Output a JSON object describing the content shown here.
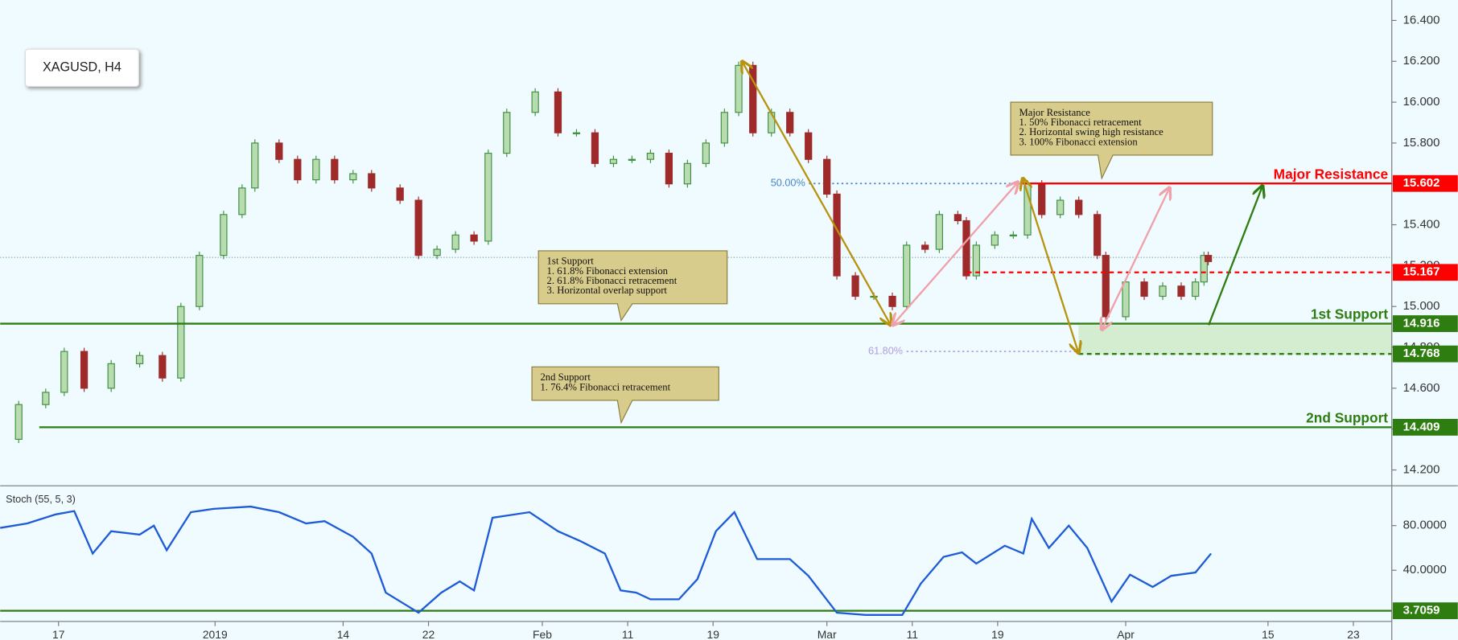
{
  "chart_data": [
    {
      "type": "candlestick",
      "title": "XAGUSD, H4",
      "x": [
        0.9,
        2.2,
        4.1,
        5.4,
        6.8,
        8.7,
        10.7,
        12.3,
        13.6,
        14.9,
        16.6,
        17.9,
        18.8,
        20.5,
        21.8,
        23.1,
        24.4,
        25.7,
        27,
        29,
        30.3,
        31.6,
        32.9,
        34.2,
        35.2,
        36.5,
        38.5,
        40.1,
        41.4,
        42.7,
        44,
        45.3,
        46.6,
        47.9,
        49.2,
        50.5,
        51.8,
        52.8,
        53.8,
        55.1,
        56.4,
        57.7,
        59,
        59.7,
        61,
        62.3,
        63.6,
        64.6,
        65.9,
        66.9,
        68.2,
        68.8,
        69.5,
        70.8,
        72.1,
        73.1,
        74.1,
        75.4,
        76.7,
        78,
        78.6,
        80,
        81.3,
        82.6,
        83.9,
        84.9,
        85.5,
        85.8
      ],
      "values": [
        14.35,
        14.52,
        14.58,
        14.78,
        14.6,
        14.72,
        14.76,
        14.65,
        15.0,
        15.25,
        15.45,
        15.58,
        15.8,
        15.72,
        15.62,
        15.72,
        15.62,
        15.65,
        15.58,
        15.52,
        15.25,
        15.28,
        15.35,
        15.32,
        15.75,
        15.95,
        16.05,
        15.85,
        15.85,
        15.7,
        15.72,
        15.72,
        15.75,
        15.6,
        15.7,
        15.8,
        15.95,
        16.18,
        15.85,
        15.95,
        15.85,
        15.72,
        15.55,
        15.15,
        15.05,
        15.05,
        15.0,
        15.3,
        15.28,
        15.45,
        15.42,
        15.15,
        15.3,
        15.35,
        15.35,
        15.6,
        15.45,
        15.52,
        15.45,
        15.25,
        14.95,
        15.12,
        15.05,
        15.1,
        15.05,
        15.12,
        15.25,
        15.22
      ],
      "up_color": "#3f8f3f",
      "down_color": "#9e2a2a",
      "xlim": [
        0.9,
        98.7
      ],
      "xticks": [
        {
          "value": 5,
          "label": "17"
        },
        {
          "value": 16,
          "label": "2019"
        },
        {
          "value": 25,
          "label": "14"
        },
        {
          "value": 31,
          "label": "22"
        },
        {
          "value": 39,
          "label": "Feb"
        },
        {
          "value": 45,
          "label": "11"
        },
        {
          "value": 51,
          "label": "19"
        },
        {
          "value": 59,
          "label": "Mar"
        },
        {
          "value": 65,
          "label": "11"
        },
        {
          "value": 71,
          "label": "19"
        },
        {
          "value": 80,
          "label": "Apr"
        },
        {
          "value": 90,
          "label": "15"
        },
        {
          "value": 96,
          "label": "23"
        }
      ],
      "ylim": [
        14.127,
        16.5
      ],
      "yticks": [
        {
          "value": 14.2,
          "label": "14.200"
        },
        {
          "value": 14.4,
          "label": "14.400"
        },
        {
          "value": 14.6,
          "label": "14.600"
        },
        {
          "value": 14.8,
          "label": "14.800"
        },
        {
          "value": 15.0,
          "label": "15.000"
        },
        {
          "value": 15.2,
          "label": "15.200"
        },
        {
          "value": 15.4,
          "label": "15.400"
        },
        {
          "value": 15.6,
          "label": "15.600"
        },
        {
          "value": 15.8,
          "label": "15.800"
        },
        {
          "value": 16.0,
          "label": "16.000"
        },
        {
          "value": 16.2,
          "label": "16.200"
        },
        {
          "value": 16.4,
          "label": "16.400"
        }
      ],
      "levels": [
        {
          "value": 15.602,
          "label": "Major Resistance",
          "color": "#ff0000",
          "style": "solid"
        },
        {
          "value": 15.167,
          "color": "#ff0000",
          "style": "dashed"
        },
        {
          "value": 14.916,
          "label": "1st Support",
          "color": "#2e7d10",
          "style": "solid"
        },
        {
          "value": 14.768,
          "color": "#2e7d10",
          "style": "dashed"
        },
        {
          "value": 14.409,
          "label": "2nd Support",
          "color": "#2e7d10",
          "style": "solid"
        }
      ],
      "fib_levels": [
        {
          "value": 15.602,
          "label": "50.00%",
          "color": "#4a86c8"
        },
        {
          "value": 14.78,
          "label": "61.80%",
          "color": "#b39ddb"
        }
      ],
      "current_price": 15.24,
      "annotations": [
        {
          "lines": [
            "1st Support",
            "1. 61.8% Fibonacci extension",
            "2. 61.8% Fibonacci retracement",
            "3. Horizontal overlap support"
          ]
        },
        {
          "lines": [
            "2nd Support",
            "1. 76.4% Fibonacci retracement"
          ]
        },
        {
          "lines": [
            "Major Resistance",
            "1.  50% Fibonacci retracement",
            "2. Horizontal swing high resistance",
            "3. 100% Fibonacci extension"
          ]
        }
      ]
    },
    {
      "type": "line",
      "title": "Stoch (55, 5, 3)",
      "color": "#1e5bd6",
      "x": [
        0.9,
        2.8,
        4.8,
        6.1,
        7.4,
        8.7,
        10.7,
        11.7,
        12.6,
        14.3,
        15.9,
        18.5,
        20.5,
        22.4,
        23.7,
        25.7,
        27,
        28,
        30.3,
        31.9,
        33.2,
        34.2,
        35.5,
        38.1,
        40.1,
        41.7,
        43.4,
        44.5,
        45.6,
        46.6,
        48.6,
        49.9,
        51.2,
        52.5,
        54.1,
        56.4,
        57.7,
        59.7,
        61.7,
        64.3,
        65.6,
        67.2,
        68.5,
        69.5,
        71.5,
        72.8,
        73.4,
        74.6,
        76,
        77.3,
        79,
        80.3,
        81.9,
        83.2,
        84.9,
        86
      ],
      "values": [
        78,
        82,
        90,
        93,
        55,
        75,
        72,
        80,
        58,
        92,
        95,
        97,
        92,
        82,
        84,
        70,
        55,
        20,
        2,
        20,
        30,
        22,
        87,
        92,
        75,
        66,
        55,
        22,
        20,
        14,
        14,
        32,
        75,
        92,
        50,
        50,
        35,
        2,
        0,
        0,
        28,
        52,
        56,
        46,
        62,
        55,
        86,
        60,
        80,
        60,
        12,
        36,
        25,
        35,
        38,
        55
      ],
      "ylim": [
        -5,
        114
      ],
      "yticks": [
        {
          "value": 40,
          "label": "40.0000"
        },
        {
          "value": 80,
          "label": "80.0000"
        }
      ],
      "level": 3.7059
    }
  ]
}
